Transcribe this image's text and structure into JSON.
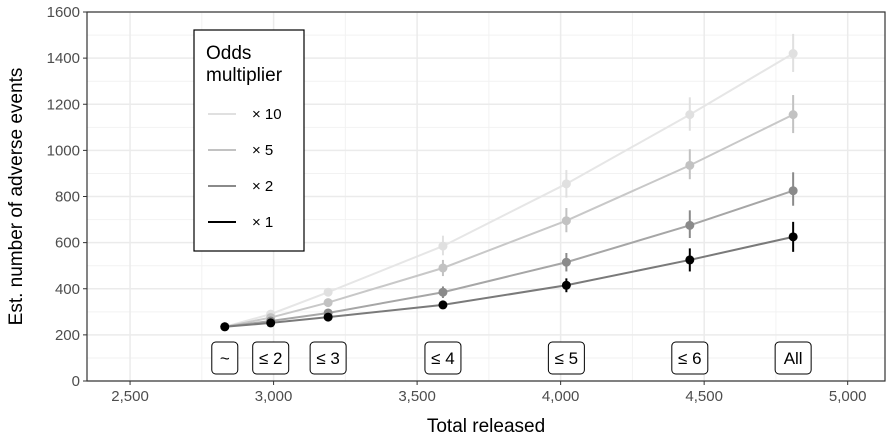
{
  "chart_data": {
    "type": "line",
    "title": "",
    "xlabel": "Total released",
    "ylabel": "Est. number of adverse events",
    "xlim": [
      2350,
      5130
    ],
    "ylim": [
      0,
      1600
    ],
    "x_ticks": [
      2500,
      3000,
      3500,
      4000,
      4500,
      5000
    ],
    "x_tick_labels": [
      "2,500",
      "3,000",
      "3,500",
      "4,000",
      "4,500",
      "5,000"
    ],
    "y_ticks": [
      0,
      200,
      400,
      600,
      800,
      1000,
      1200,
      1400,
      1600
    ],
    "y_tick_labels": [
      "0",
      "200",
      "400",
      "600",
      "800",
      "1000",
      "1200",
      "1400",
      "1600"
    ],
    "grid": true,
    "legend": {
      "title_lines": [
        "Odds",
        "multiplier"
      ],
      "placement": "top-left",
      "entries": [
        "× 10",
        "× 5",
        "× 2",
        "× 1"
      ]
    },
    "x": [
      2830,
      2990,
      3190,
      3590,
      4020,
      4450,
      4810
    ],
    "group_labels": [
      "~",
      "≤ 2",
      "≤ 3",
      "≤ 4",
      "≤ 5",
      "≤ 6",
      "All"
    ],
    "series": [
      {
        "name": "× 10",
        "color": "#e0e0e0",
        "values": [
          235,
          290,
          385,
          585,
          855,
          1155,
          1420
        ],
        "lower": [
          235,
          280,
          370,
          545,
          795,
          1085,
          1340
        ],
        "upper": [
          235,
          300,
          400,
          630,
          915,
          1230,
          1505
        ]
      },
      {
        "name": "× 5",
        "color": "#c2c2c2",
        "values": [
          235,
          275,
          340,
          490,
          695,
          935,
          1155
        ],
        "lower": [
          235,
          265,
          325,
          455,
          645,
          875,
          1075
        ],
        "upper": [
          235,
          285,
          355,
          525,
          750,
          1005,
          1240
        ]
      },
      {
        "name": "× 2",
        "color": "#8a8a8a",
        "values": [
          235,
          260,
          295,
          385,
          515,
          675,
          825
        ],
        "lower": [
          235,
          252,
          283,
          360,
          475,
          620,
          760
        ],
        "upper": [
          235,
          268,
          307,
          410,
          555,
          740,
          905
        ]
      },
      {
        "name": "× 1",
        "color": "#000000",
        "values": [
          235,
          252,
          277,
          330,
          415,
          525,
          625
        ],
        "lower": [
          235,
          245,
          267,
          312,
          385,
          475,
          560
        ],
        "upper": [
          235,
          259,
          287,
          348,
          445,
          575,
          690
        ]
      }
    ]
  }
}
